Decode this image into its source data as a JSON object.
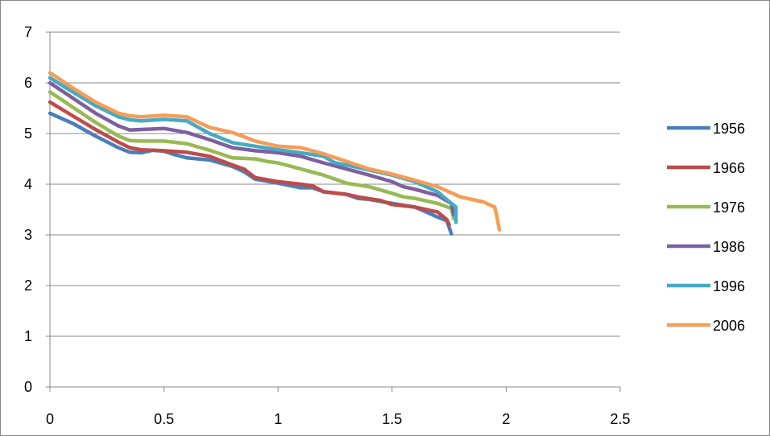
{
  "chart_data": {
    "type": "line",
    "title": "",
    "xlabel": "",
    "ylabel": "",
    "xlim": [
      0,
      2.5
    ],
    "ylim": [
      0,
      7
    ],
    "x_ticks": [
      "0",
      "0.5",
      "1",
      "1.5",
      "2",
      "2.5"
    ],
    "y_ticks": [
      "0",
      "1",
      "2",
      "3",
      "4",
      "5",
      "6",
      "7"
    ],
    "grid": "horizontal",
    "legend_position": "right",
    "series": [
      {
        "name": "1956",
        "color": "#4A7EBB",
        "points": [
          [
            0,
            5.4
          ],
          [
            0.1,
            5.2
          ],
          [
            0.2,
            4.95
          ],
          [
            0.3,
            4.72
          ],
          [
            0.35,
            4.63
          ],
          [
            0.4,
            4.62
          ],
          [
            0.45,
            4.67
          ],
          [
            0.5,
            4.65
          ],
          [
            0.55,
            4.58
          ],
          [
            0.6,
            4.52
          ],
          [
            0.7,
            4.48
          ],
          [
            0.8,
            4.35
          ],
          [
            0.85,
            4.25
          ],
          [
            0.9,
            4.1
          ],
          [
            1.0,
            4.02
          ],
          [
            1.1,
            3.93
          ],
          [
            1.15,
            3.93
          ],
          [
            1.2,
            3.85
          ],
          [
            1.3,
            3.8
          ],
          [
            1.35,
            3.72
          ],
          [
            1.4,
            3.7
          ],
          [
            1.5,
            3.62
          ],
          [
            1.6,
            3.55
          ],
          [
            1.65,
            3.45
          ],
          [
            1.7,
            3.35
          ],
          [
            1.74,
            3.28
          ],
          [
            1.75,
            3.15
          ],
          [
            1.76,
            3.02
          ]
        ]
      },
      {
        "name": "1966",
        "color": "#BE4B48",
        "points": [
          [
            0,
            5.62
          ],
          [
            0.1,
            5.35
          ],
          [
            0.2,
            5.08
          ],
          [
            0.3,
            4.83
          ],
          [
            0.35,
            4.72
          ],
          [
            0.4,
            4.68
          ],
          [
            0.5,
            4.66
          ],
          [
            0.6,
            4.63
          ],
          [
            0.7,
            4.55
          ],
          [
            0.8,
            4.38
          ],
          [
            0.85,
            4.3
          ],
          [
            0.9,
            4.13
          ],
          [
            1.0,
            4.05
          ],
          [
            1.1,
            4.0
          ],
          [
            1.15,
            3.97
          ],
          [
            1.2,
            3.85
          ],
          [
            1.3,
            3.8
          ],
          [
            1.35,
            3.75
          ],
          [
            1.45,
            3.68
          ],
          [
            1.5,
            3.6
          ],
          [
            1.6,
            3.55
          ],
          [
            1.7,
            3.45
          ],
          [
            1.74,
            3.3
          ],
          [
            1.75,
            3.2
          ]
        ]
      },
      {
        "name": "1976",
        "color": "#98B954",
        "points": [
          [
            0,
            5.82
          ],
          [
            0.1,
            5.52
          ],
          [
            0.2,
            5.22
          ],
          [
            0.3,
            4.95
          ],
          [
            0.35,
            4.86
          ],
          [
            0.4,
            4.85
          ],
          [
            0.5,
            4.85
          ],
          [
            0.6,
            4.8
          ],
          [
            0.7,
            4.67
          ],
          [
            0.8,
            4.52
          ],
          [
            0.9,
            4.5
          ],
          [
            0.95,
            4.45
          ],
          [
            1.0,
            4.42
          ],
          [
            1.1,
            4.3
          ],
          [
            1.2,
            4.18
          ],
          [
            1.25,
            4.1
          ],
          [
            1.3,
            4.02
          ],
          [
            1.4,
            3.95
          ],
          [
            1.5,
            3.82
          ],
          [
            1.55,
            3.75
          ],
          [
            1.6,
            3.72
          ],
          [
            1.7,
            3.62
          ],
          [
            1.76,
            3.52
          ],
          [
            1.77,
            3.32
          ]
        ]
      },
      {
        "name": "1986",
        "color": "#7D60A0",
        "points": [
          [
            0,
            6.0
          ],
          [
            0.1,
            5.7
          ],
          [
            0.2,
            5.4
          ],
          [
            0.3,
            5.15
          ],
          [
            0.35,
            5.07
          ],
          [
            0.4,
            5.08
          ],
          [
            0.5,
            5.1
          ],
          [
            0.6,
            5.02
          ],
          [
            0.7,
            4.88
          ],
          [
            0.8,
            4.72
          ],
          [
            0.9,
            4.66
          ],
          [
            1.0,
            4.62
          ],
          [
            1.1,
            4.55
          ],
          [
            1.2,
            4.42
          ],
          [
            1.3,
            4.3
          ],
          [
            1.4,
            4.18
          ],
          [
            1.5,
            4.05
          ],
          [
            1.55,
            3.95
          ],
          [
            1.6,
            3.9
          ],
          [
            1.7,
            3.78
          ],
          [
            1.76,
            3.62
          ],
          [
            1.77,
            3.4
          ]
        ]
      },
      {
        "name": "1996",
        "color": "#46AAC5",
        "points": [
          [
            0,
            6.1
          ],
          [
            0.1,
            5.82
          ],
          [
            0.2,
            5.55
          ],
          [
            0.3,
            5.33
          ],
          [
            0.35,
            5.27
          ],
          [
            0.4,
            5.25
          ],
          [
            0.5,
            5.28
          ],
          [
            0.6,
            5.25
          ],
          [
            0.7,
            5.0
          ],
          [
            0.8,
            4.82
          ],
          [
            0.9,
            4.75
          ],
          [
            1.0,
            4.68
          ],
          [
            1.1,
            4.62
          ],
          [
            1.2,
            4.55
          ],
          [
            1.25,
            4.42
          ],
          [
            1.3,
            4.38
          ],
          [
            1.4,
            4.28
          ],
          [
            1.5,
            4.18
          ],
          [
            1.6,
            4.05
          ],
          [
            1.7,
            3.85
          ],
          [
            1.76,
            3.62
          ],
          [
            1.78,
            3.55
          ],
          [
            1.78,
            3.25
          ]
        ]
      },
      {
        "name": "2006",
        "color": "#F59D56",
        "points": [
          [
            0,
            6.2
          ],
          [
            0.1,
            5.9
          ],
          [
            0.2,
            5.62
          ],
          [
            0.3,
            5.4
          ],
          [
            0.35,
            5.35
          ],
          [
            0.4,
            5.33
          ],
          [
            0.5,
            5.36
          ],
          [
            0.6,
            5.33
          ],
          [
            0.7,
            5.12
          ],
          [
            0.8,
            5.02
          ],
          [
            0.9,
            4.85
          ],
          [
            1.0,
            4.75
          ],
          [
            1.1,
            4.72
          ],
          [
            1.2,
            4.6
          ],
          [
            1.3,
            4.45
          ],
          [
            1.4,
            4.3
          ],
          [
            1.5,
            4.2
          ],
          [
            1.6,
            4.08
          ],
          [
            1.7,
            3.95
          ],
          [
            1.8,
            3.75
          ],
          [
            1.9,
            3.65
          ],
          [
            1.95,
            3.55
          ],
          [
            1.96,
            3.35
          ],
          [
            1.97,
            3.1
          ]
        ]
      }
    ]
  }
}
